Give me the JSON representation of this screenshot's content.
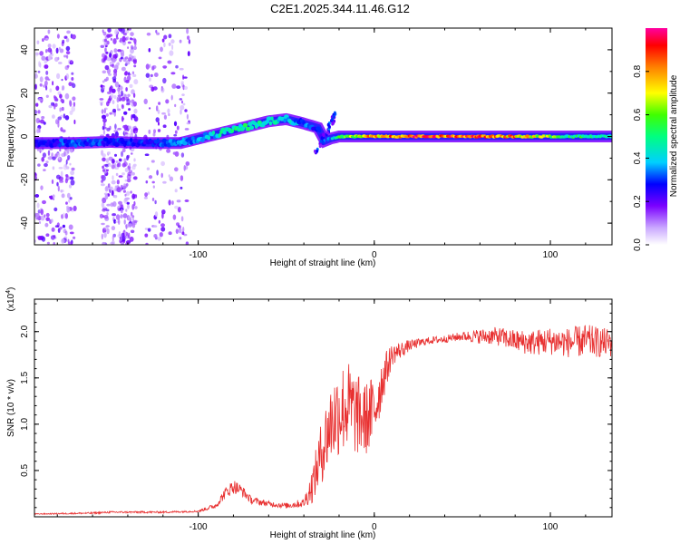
{
  "title": "C2E1.2025.344.11.46.G12",
  "colors": {
    "snr_line": "#e83030",
    "frame": "#000000",
    "track_low": "#7a00ff",
    "track_high": "#ff0000"
  },
  "chart_data": [
    {
      "type": "heatmap",
      "xlabel": "Height of straight line (km)",
      "ylabel": "Frequency (Hz)",
      "xlim": [
        -193,
        135
      ],
      "ylim": [
        -50,
        50
      ],
      "xticks": [
        {
          "v": -100,
          "label": "-100"
        },
        {
          "v": 0,
          "label": "0"
        },
        {
          "v": 100,
          "label": "100"
        }
      ],
      "yticks": [
        {
          "v": 40,
          "label": "40"
        },
        {
          "v": 20,
          "label": "20"
        },
        {
          "v": 0,
          "label": "0"
        },
        {
          "v": -20,
          "label": "-20"
        },
        {
          "v": -40,
          "label": "-40"
        }
      ],
      "colorbar": {
        "label": "Normalized spectral amplitude",
        "range": [
          0,
          1
        ],
        "ticks": [
          {
            "v": 0.0,
            "label": "0.0"
          },
          {
            "v": 0.2,
            "label": "0.2"
          },
          {
            "v": 0.4,
            "label": "0.4"
          },
          {
            "v": 0.6,
            "label": "0.6"
          },
          {
            "v": 0.8,
            "label": "0.8"
          }
        ]
      },
      "track": {
        "x": [
          -193,
          -170,
          -150,
          -130,
          -110,
          -100,
          -90,
          -80,
          -70,
          -60,
          -50,
          -40,
          -32,
          -28,
          -25,
          -20,
          -10,
          0,
          20,
          50,
          80,
          110,
          135
        ],
        "frequency": [
          -3,
          -3,
          -2.5,
          -3,
          -3,
          -1,
          1,
          3,
          5,
          7,
          8,
          6,
          4,
          -2,
          -1,
          0,
          0,
          0,
          0,
          0,
          0,
          0,
          0
        ],
        "amplitude": [
          0.25,
          0.35,
          0.3,
          0.3,
          0.35,
          0.4,
          0.45,
          0.5,
          0.5,
          0.45,
          0.45,
          0.35,
          0.3,
          0.2,
          0.4,
          0.55,
          0.7,
          0.85,
          0.9,
          0.9,
          0.85,
          0.55,
          0.5
        ]
      },
      "noise_regions": [
        {
          "x": [
            -193,
            -170
          ],
          "frequency": [
            -50,
            50
          ],
          "density": "moderate"
        },
        {
          "x": [
            -155,
            -135
          ],
          "frequency": [
            -50,
            50
          ],
          "density": "high"
        },
        {
          "x": [
            -130,
            -105
          ],
          "frequency": [
            -50,
            50
          ],
          "density": "low"
        }
      ]
    },
    {
      "type": "line",
      "xlabel": "Height of straight line (km)",
      "ylabel": "SNR (10 * v/v)",
      "exponent_label": "(x10",
      "exponent_sup": "4",
      "exponent_close": ")",
      "xlim": [
        -193,
        135
      ],
      "ylim": [
        0,
        2.35
      ],
      "xticks": [
        {
          "v": -100,
          "label": "-100"
        },
        {
          "v": 0,
          "label": "0"
        },
        {
          "v": 100,
          "label": "100"
        }
      ],
      "yticks": [
        {
          "v": 0.5,
          "label": "0.5"
        },
        {
          "v": 1.0,
          "label": "1.0"
        },
        {
          "v": 1.5,
          "label": "1.5"
        },
        {
          "v": 2.0,
          "label": "2.0"
        }
      ],
      "series": [
        {
          "name": "SNR",
          "x": [
            -193,
            -160,
            -150,
            -120,
            -100,
            -90,
            -85,
            -80,
            -75,
            -70,
            -60,
            -50,
            -40,
            -35,
            -30,
            -25,
            -20,
            -15,
            -10,
            -5,
            0,
            5,
            10,
            20,
            30,
            40,
            50,
            60,
            70,
            80,
            90,
            100,
            110,
            120,
            130,
            135
          ],
          "mean": [
            0.03,
            0.04,
            0.05,
            0.05,
            0.06,
            0.12,
            0.25,
            0.33,
            0.28,
            0.18,
            0.14,
            0.12,
            0.15,
            0.35,
            0.7,
            1.0,
            1.15,
            1.2,
            1.1,
            1.05,
            1.15,
            1.5,
            1.75,
            1.85,
            1.9,
            1.92,
            1.95,
            1.95,
            1.95,
            1.9,
            1.88,
            1.9,
            1.88,
            1.9,
            1.88,
            1.88
          ],
          "amp": [
            0.005,
            0.01,
            0.01,
            0.01,
            0.01,
            0.03,
            0.06,
            0.08,
            0.06,
            0.04,
            0.03,
            0.03,
            0.05,
            0.2,
            0.35,
            0.45,
            0.5,
            0.5,
            0.45,
            0.4,
            0.4,
            0.25,
            0.12,
            0.06,
            0.04,
            0.04,
            0.05,
            0.08,
            0.1,
            0.12,
            0.14,
            0.15,
            0.16,
            0.18,
            0.16,
            0.16
          ]
        }
      ]
    }
  ]
}
